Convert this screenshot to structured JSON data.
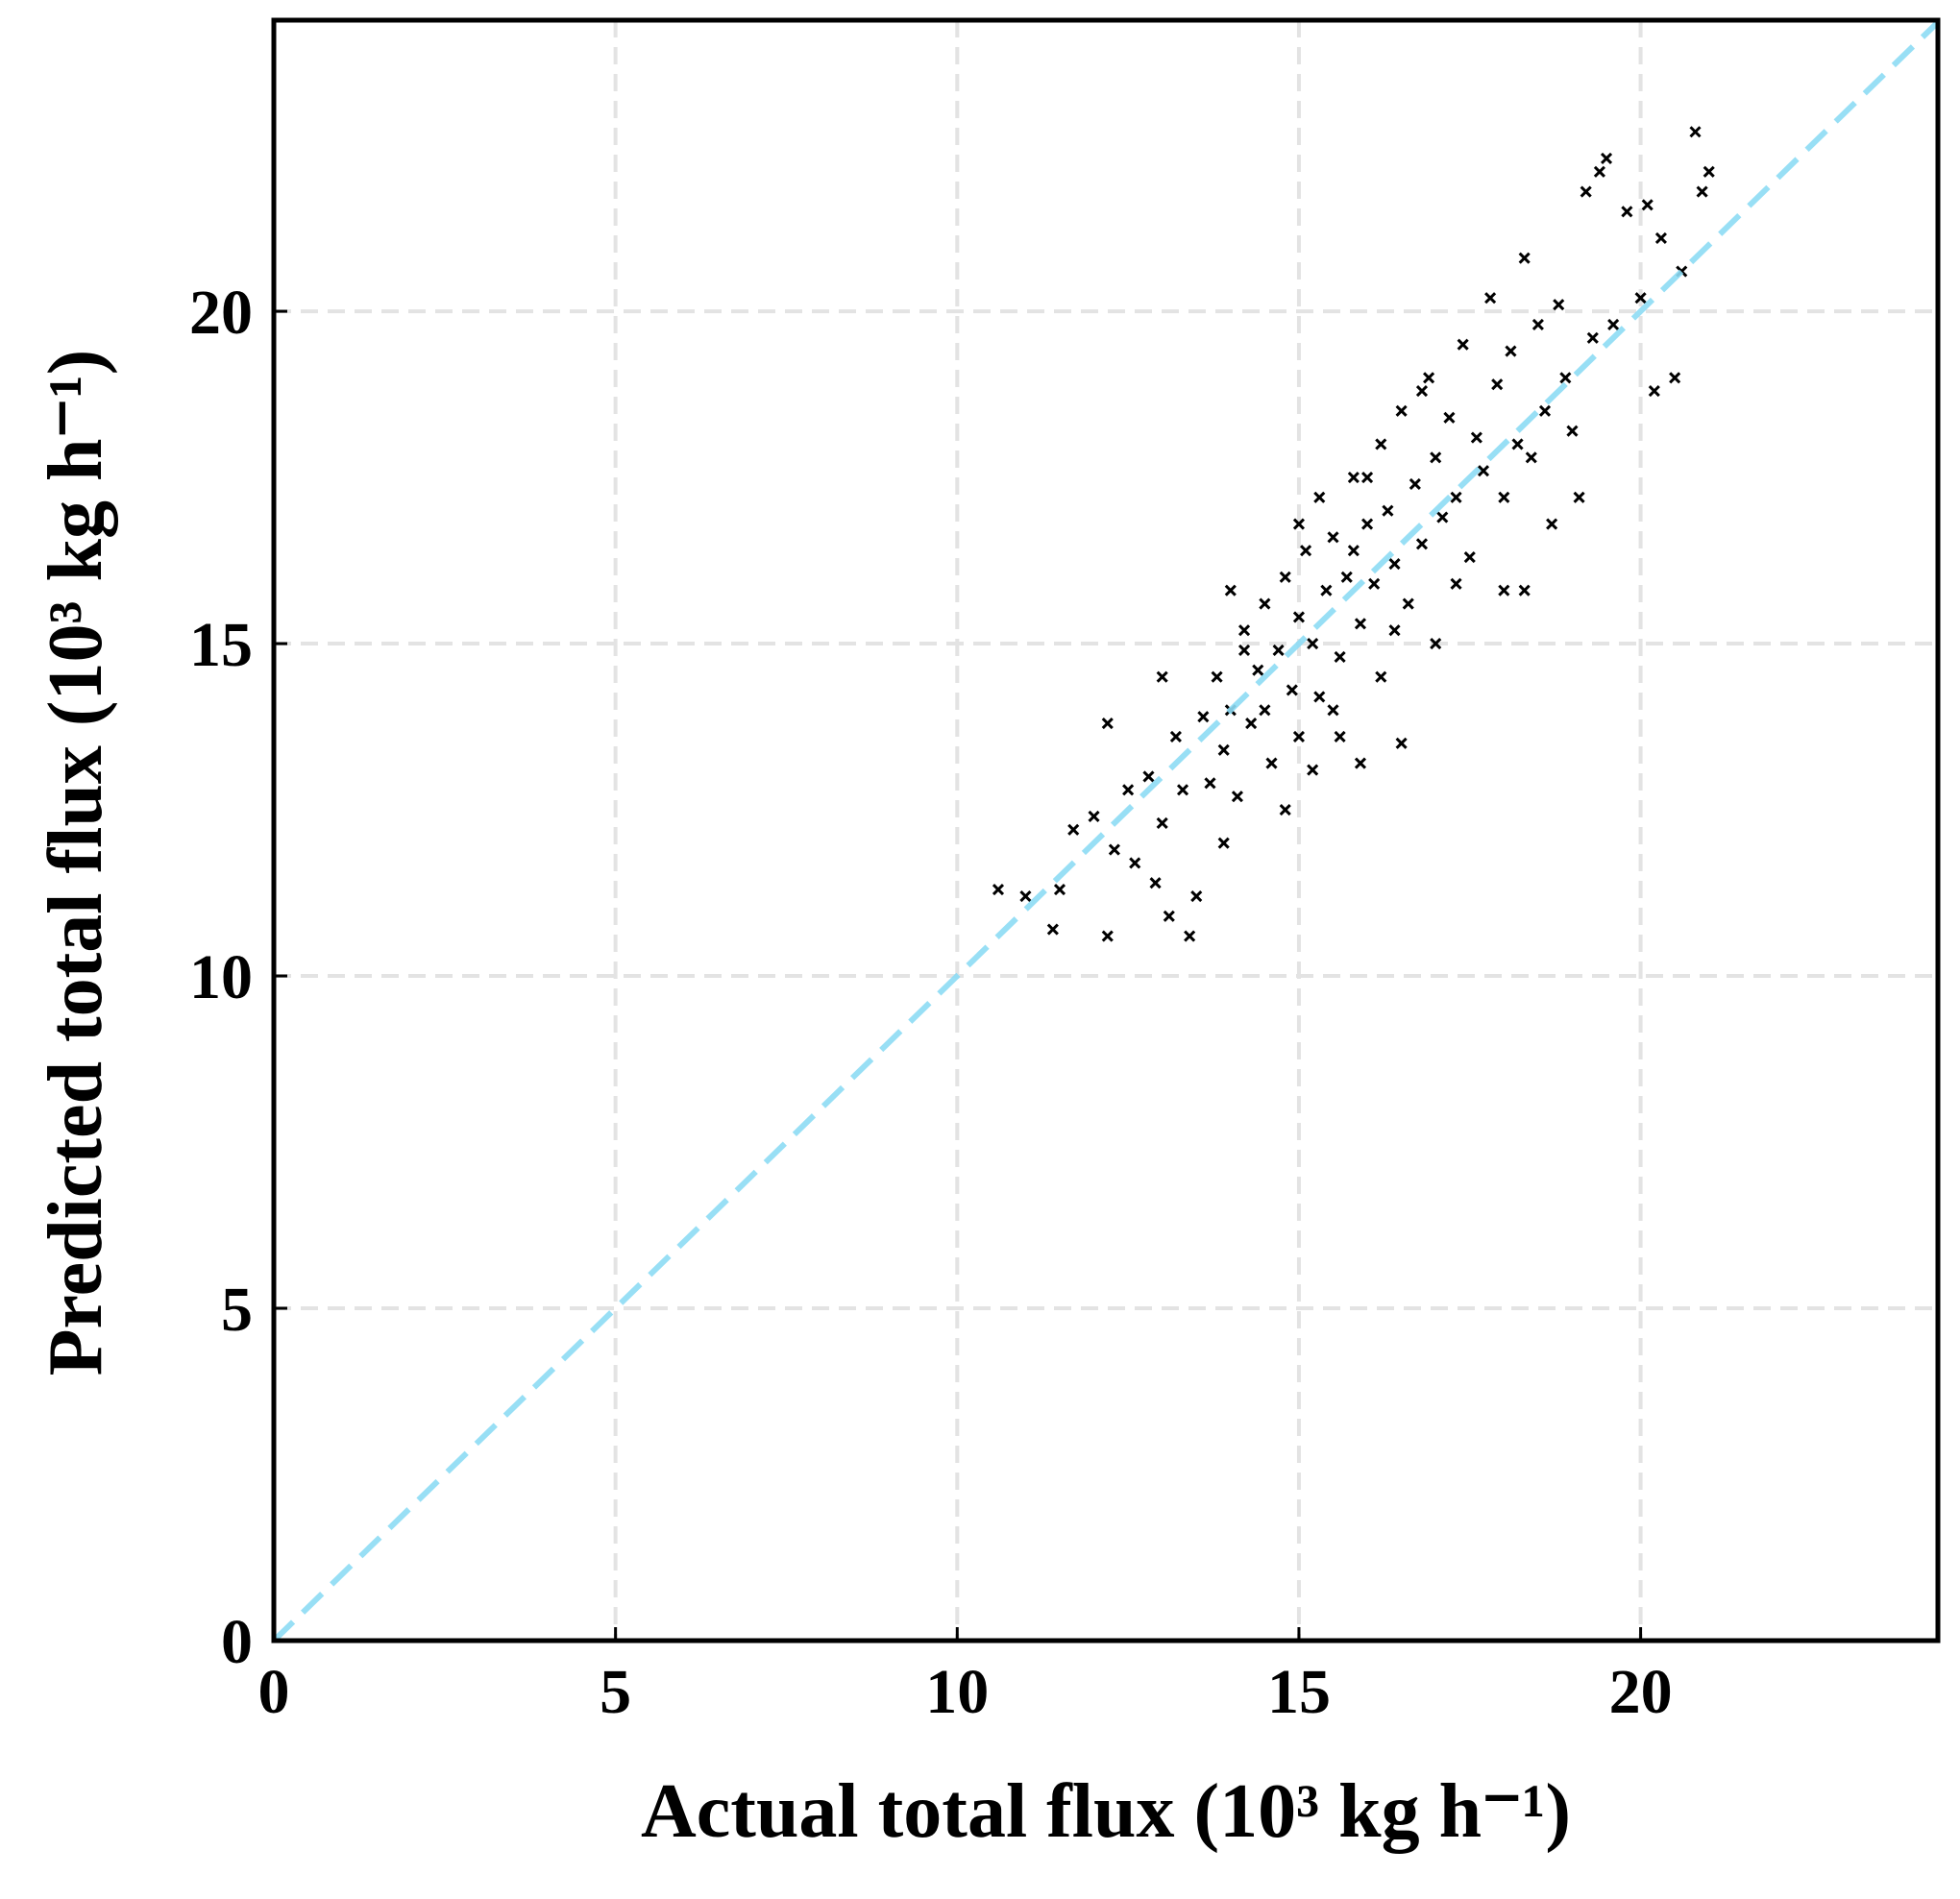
{
  "chart_data": {
    "type": "scatter",
    "xlabel": "Actual total flux (10³ kg h⁻¹)",
    "ylabel": "Predicted total flux (10³ kg h⁻¹)",
    "xlim": [
      0,
      24.35
    ],
    "ylim": [
      0,
      24.38
    ],
    "xticks": [
      0,
      5,
      10,
      15,
      20
    ],
    "yticks": [
      0,
      5,
      10,
      15,
      20
    ],
    "grid": true,
    "color": "#000000",
    "marker": "x",
    "diagonal": {
      "color": "#8ddcf5",
      "style": "dashed"
    },
    "x": [
      10.6,
      11.0,
      11.4,
      11.5,
      11.7,
      12.0,
      12.2,
      12.3,
      12.5,
      12.6,
      12.8,
      12.9,
      13.0,
      13.1,
      13.2,
      13.4,
      13.5,
      13.3,
      13.6,
      13.7,
      13.8,
      13.9,
      14.0,
      14.1,
      14.2,
      14.3,
      14.4,
      14.5,
      14.6,
      14.7,
      14.8,
      14.8,
      14.9,
      15.0,
      15.0,
      15.1,
      15.2,
      15.3,
      15.3,
      15.4,
      15.5,
      15.6,
      15.6,
      15.7,
      15.8,
      15.9,
      15.9,
      16.0,
      16.1,
      16.2,
      16.2,
      16.3,
      16.4,
      16.5,
      16.5,
      16.6,
      16.7,
      16.8,
      16.9,
      17.0,
      17.0,
      17.1,
      17.2,
      17.3,
      17.4,
      17.5,
      17.6,
      17.7,
      17.8,
      17.9,
      18.0,
      18.0,
      18.1,
      18.2,
      18.3,
      18.4,
      18.5,
      18.6,
      18.7,
      18.8,
      18.9,
      19.0,
      19.1,
      19.2,
      19.3,
      19.4,
      19.5,
      19.6,
      19.8,
      20.0,
      20.1,
      20.2,
      20.3,
      20.5,
      20.8,
      20.9,
      21.0,
      20.6,
      14.0,
      13.0,
      12.2,
      15.5,
      16.8,
      17.3,
      14.5,
      15.0,
      16.0,
      15.8,
      14.2,
      16.4,
      13.9,
      15.2,
      18.3
    ],
    "values": [
      11.3,
      11.2,
      10.7,
      11.3,
      12.2,
      12.4,
      10.6,
      11.9,
      12.8,
      11.7,
      13.0,
      11.4,
      12.3,
      10.9,
      13.6,
      10.6,
      11.2,
      12.8,
      13.9,
      12.9,
      14.5,
      13.4,
      14.0,
      12.7,
      15.2,
      13.8,
      14.6,
      15.6,
      13.2,
      14.9,
      16.0,
      12.5,
      14.3,
      15.4,
      13.6,
      16.4,
      15.0,
      14.2,
      17.2,
      15.8,
      16.6,
      14.8,
      13.6,
      16.0,
      17.5,
      15.3,
      13.2,
      16.8,
      15.9,
      18.0,
      14.5,
      17.0,
      16.2,
      18.5,
      13.5,
      15.6,
      17.4,
      16.5,
      19.0,
      17.8,
      15.0,
      16.9,
      18.4,
      17.2,
      19.5,
      16.3,
      18.1,
      17.6,
      20.2,
      18.9,
      17.2,
      15.8,
      19.4,
      18.0,
      20.8,
      17.8,
      19.8,
      18.5,
      16.8,
      20.1,
      19.0,
      18.2,
      17.2,
      21.8,
      19.6,
      22.1,
      22.3,
      19.8,
      21.5,
      20.2,
      21.6,
      18.8,
      21.1,
      19.0,
      22.7,
      21.8,
      22.1,
      20.6,
      15.8,
      14.5,
      13.8,
      14.0,
      18.8,
      15.9,
      14.0,
      16.8,
      17.5,
      16.4,
      14.9,
      15.2,
      12.0,
      13.1,
      15.8
    ]
  }
}
